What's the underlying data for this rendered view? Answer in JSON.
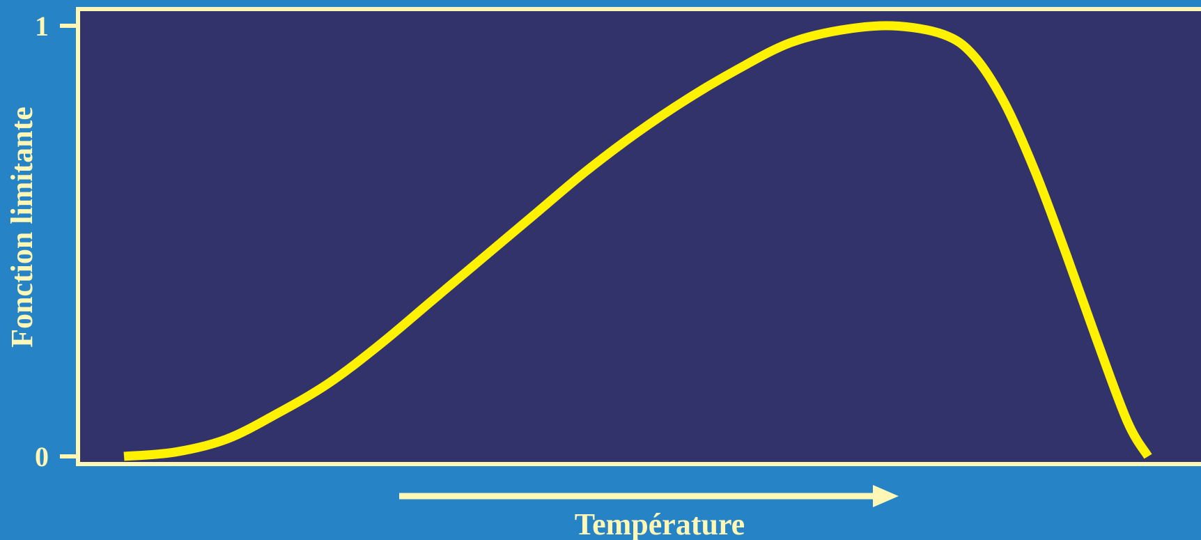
{
  "chart_data": {
    "type": "line",
    "title": "",
    "xlabel": "Température",
    "ylabel": "Fonction limitante",
    "ylim": [
      0,
      1
    ],
    "yticks": [
      "0",
      "1"
    ],
    "series": [
      {
        "x": [
          0.0,
          0.05,
          0.1,
          0.15,
          0.2,
          0.25,
          0.3,
          0.35,
          0.4,
          0.45,
          0.5,
          0.55,
          0.6,
          0.65,
          0.7,
          0.75,
          0.8,
          0.83,
          0.86,
          0.89,
          0.92,
          0.95,
          0.98,
          1.0
        ],
        "values": [
          0.0,
          0.01,
          0.04,
          0.1,
          0.17,
          0.26,
          0.36,
          0.46,
          0.56,
          0.66,
          0.75,
          0.83,
          0.9,
          0.96,
          0.99,
          1.0,
          0.98,
          0.93,
          0.82,
          0.66,
          0.47,
          0.27,
          0.08,
          0.0
        ]
      }
    ],
    "grid": false,
    "arrow_on_x_axis": true
  },
  "colors": {
    "background": "#2683C6",
    "plot_area": "#33336B",
    "frame": "#FFF7B5",
    "curve": "#FFF200",
    "text": "#FFF7B5"
  }
}
